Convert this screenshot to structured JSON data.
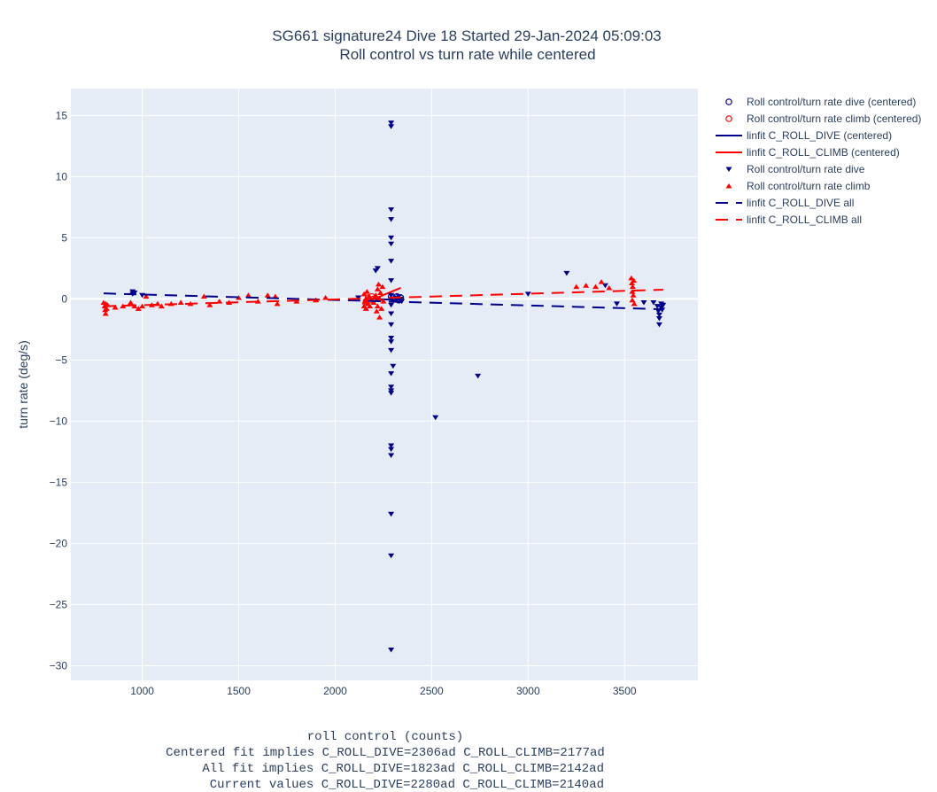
{
  "chart_data": {
    "type": "scatter",
    "title": "SG661 signature24 Dive 18 Started 29-Jan-2024 05:09:03",
    "subtitle": "Roll control vs turn rate while centered",
    "ylabel": "turn rate (deg/s)",
    "xlabel_lines": [
      "roll control (counts)",
      "Centered fit implies C_ROLL_DIVE=2306ad C_ROLL_CLIMB=2177ad",
      "All fit implies C_ROLL_DIVE=1823ad C_ROLL_CLIMB=2142ad",
      "Current values C_ROLL_DIVE=2280ad C_ROLL_CLIMB=2140ad"
    ],
    "xlim": [
      630,
      3880
    ],
    "ylim": [
      -31.2,
      17.2
    ],
    "xticks": [
      1000,
      1500,
      2000,
      2500,
      3000,
      3500
    ],
    "yticks": [
      15,
      10,
      5,
      0,
      -5,
      -10,
      -15,
      -20,
      -25,
      -30
    ],
    "grid": true,
    "legend_position": "right",
    "colors": {
      "dive": "#00008b",
      "climb": "#ff0000",
      "plot_bg": "#e5ecf6",
      "grid": "#ffffff"
    },
    "series": [
      {
        "name": "Roll control/turn rate dive (centered)",
        "kind": "markers",
        "marker": "circle-open",
        "color": "#00008b",
        "points": [
          [
            2290,
            0.2
          ],
          [
            2300,
            0.1
          ],
          [
            2310,
            0.0
          ],
          [
            2320,
            0.2
          ],
          [
            2330,
            -0.1
          ],
          [
            2340,
            0.1
          ]
        ]
      },
      {
        "name": "Roll control/turn rate climb (centered)",
        "kind": "markers",
        "marker": "circle-open",
        "color": "#ff0000",
        "points": [
          [
            2160,
            -0.2
          ],
          [
            2170,
            0.1
          ],
          [
            2180,
            -0.1
          ],
          [
            2190,
            0.2
          ],
          [
            2200,
            0.0
          ]
        ]
      },
      {
        "name": "linfit C_ROLL_DIVE (centered)",
        "kind": "line",
        "dash": "solid",
        "color": "#00008b",
        "points": [
          [
            2200,
            0.0
          ],
          [
            2340,
            -0.1
          ]
        ]
      },
      {
        "name": "linfit C_ROLL_CLIMB (centered)",
        "kind": "line",
        "dash": "solid",
        "color": "#ff0000",
        "points": [
          [
            2140,
            -0.4
          ],
          [
            2340,
            0.9
          ]
        ]
      },
      {
        "name": "Roll control/turn rate dive",
        "kind": "markers",
        "marker": "triangle-down",
        "color": "#00008b",
        "points": [
          [
            950,
            0.6
          ],
          [
            950,
            0.4
          ],
          [
            955,
            0.5
          ],
          [
            960,
            0.5
          ],
          [
            1000,
            0.3
          ],
          [
            2120,
            0.1
          ],
          [
            2210,
            2.3
          ],
          [
            2220,
            2.5
          ],
          [
            2290,
            14.4
          ],
          [
            2290,
            14.1
          ],
          [
            2290,
            7.3
          ],
          [
            2290,
            6.5
          ],
          [
            2290,
            5.0
          ],
          [
            2290,
            4.5
          ],
          [
            2290,
            3.1
          ],
          [
            2290,
            1.5
          ],
          [
            2290,
            0.3
          ],
          [
            2290,
            -0.5
          ],
          [
            2290,
            -1.2
          ],
          [
            2290,
            -2.1
          ],
          [
            2290,
            -3.2
          ],
          [
            2290,
            -3.5
          ],
          [
            2290,
            -4.2
          ],
          [
            2290,
            -6.1
          ],
          [
            2290,
            -7.2
          ],
          [
            2290,
            -7.5
          ],
          [
            2290,
            -7.7
          ],
          [
            2290,
            -12.0
          ],
          [
            2290,
            -12.3
          ],
          [
            2290,
            -12.8
          ],
          [
            2290,
            -17.6
          ],
          [
            2290,
            -21.0
          ],
          [
            2290,
            -28.7
          ],
          [
            2300,
            -5.5
          ],
          [
            2330,
            0.2
          ],
          [
            2340,
            0.0
          ],
          [
            2345,
            -0.2
          ],
          [
            2520,
            -9.7
          ],
          [
            2740,
            -6.3
          ],
          [
            3000,
            0.4
          ],
          [
            3200,
            2.1
          ],
          [
            3400,
            1.1
          ],
          [
            3460,
            -0.4
          ],
          [
            3600,
            -0.3
          ],
          [
            3650,
            -0.3
          ],
          [
            3670,
            -0.6
          ],
          [
            3675,
            -1.0
          ],
          [
            3680,
            -1.3
          ],
          [
            3680,
            -1.6
          ],
          [
            3680,
            -2.1
          ],
          [
            3690,
            -0.4
          ],
          [
            3690,
            -0.7
          ],
          [
            3695,
            -0.9
          ],
          [
            3700,
            -0.5
          ]
        ]
      },
      {
        "name": "Roll control/turn rate climb",
        "kind": "markers",
        "marker": "triangle-up",
        "color": "#ff0000",
        "points": [
          [
            800,
            -0.3
          ],
          [
            805,
            -0.6
          ],
          [
            808,
            -0.9
          ],
          [
            810,
            -1.2
          ],
          [
            812,
            -0.4
          ],
          [
            815,
            -0.8
          ],
          [
            820,
            -0.5
          ],
          [
            860,
            -0.7
          ],
          [
            900,
            -0.6
          ],
          [
            940,
            -0.3
          ],
          [
            960,
            -0.6
          ],
          [
            980,
            -0.8
          ],
          [
            1000,
            -0.6
          ],
          [
            1020,
            0.2
          ],
          [
            1050,
            -0.5
          ],
          [
            1080,
            -0.4
          ],
          [
            1100,
            -0.6
          ],
          [
            1150,
            -0.4
          ],
          [
            1200,
            -0.3
          ],
          [
            1250,
            -0.4
          ],
          [
            1320,
            0.2
          ],
          [
            1350,
            -0.5
          ],
          [
            1400,
            -0.2
          ],
          [
            1450,
            -0.3
          ],
          [
            1500,
            0.1
          ],
          [
            1550,
            0.3
          ],
          [
            1600,
            -0.2
          ],
          [
            1650,
            0.3
          ],
          [
            1690,
            0.2
          ],
          [
            1700,
            -0.4
          ],
          [
            1800,
            -0.2
          ],
          [
            1900,
            -0.1
          ],
          [
            1950,
            0.1
          ],
          [
            2150,
            -0.6
          ],
          [
            2150,
            0.4
          ],
          [
            2155,
            -0.2
          ],
          [
            2160,
            -0.8
          ],
          [
            2160,
            0.0
          ],
          [
            2165,
            0.6
          ],
          [
            2170,
            -0.4
          ],
          [
            2175,
            0.2
          ],
          [
            2180,
            -0.6
          ],
          [
            2200,
            -0.3
          ],
          [
            2210,
            0.3
          ],
          [
            2215,
            -1.0
          ],
          [
            2220,
            0.8
          ],
          [
            2220,
            -0.6
          ],
          [
            2225,
            1.2
          ],
          [
            2230,
            -1.5
          ],
          [
            2230,
            0.0
          ],
          [
            2235,
            0.5
          ],
          [
            2240,
            -0.8
          ],
          [
            2245,
            1.0
          ],
          [
            2250,
            -0.2
          ],
          [
            3250,
            1.0
          ],
          [
            3300,
            1.1
          ],
          [
            3350,
            1.0
          ],
          [
            3380,
            1.4
          ],
          [
            3420,
            0.9
          ],
          [
            3535,
            1.7
          ],
          [
            3538,
            1.3
          ],
          [
            3540,
            0.6
          ],
          [
            3540,
            -0.1
          ],
          [
            3542,
            1.0
          ],
          [
            3545,
            0.3
          ],
          [
            3548,
            1.5
          ],
          [
            3550,
            -0.4
          ]
        ]
      },
      {
        "name": "linfit C_ROLL_DIVE all",
        "kind": "line",
        "dash": "dash",
        "color": "#00008b",
        "points": [
          [
            800,
            0.45
          ],
          [
            3700,
            -0.85
          ]
        ]
      },
      {
        "name": "linfit C_ROLL_CLIMB all",
        "kind": "line",
        "dash": "dash",
        "color": "#ff0000",
        "points": [
          [
            800,
            -0.6
          ],
          [
            3700,
            0.75
          ]
        ]
      }
    ]
  }
}
